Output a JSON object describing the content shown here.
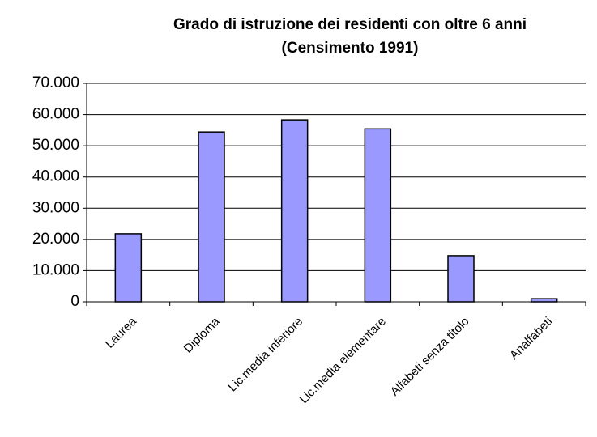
{
  "chart_data": {
    "type": "bar",
    "title": [
      "Grado di istruzione dei residenti con oltre 6 anni",
      "(Censimento 1991)"
    ],
    "categories": [
      "Laurea",
      "Diploma",
      "Lic.media inferiore",
      "Lic.media elementare",
      "Alfabeti senza titolo",
      "Analfabeti"
    ],
    "values": [
      21800,
      54400,
      58300,
      55400,
      14800,
      1000
    ],
    "color": "#9999ff",
    "ylim": [
      0,
      70000
    ],
    "yticks": [
      0,
      {
        "value": 10000,
        "label": "10.000"
      },
      {
        "value": 20000,
        "label": "20.000"
      },
      {
        "value": 30000,
        "label": "30.000"
      },
      {
        "value": 40000,
        "label": "40.000"
      },
      {
        "value": 50000,
        "label": "50.000"
      },
      {
        "value": 60000,
        "label": "60.000"
      },
      {
        "value": 70000,
        "label": "70.000"
      }
    ],
    "grid": true
  }
}
